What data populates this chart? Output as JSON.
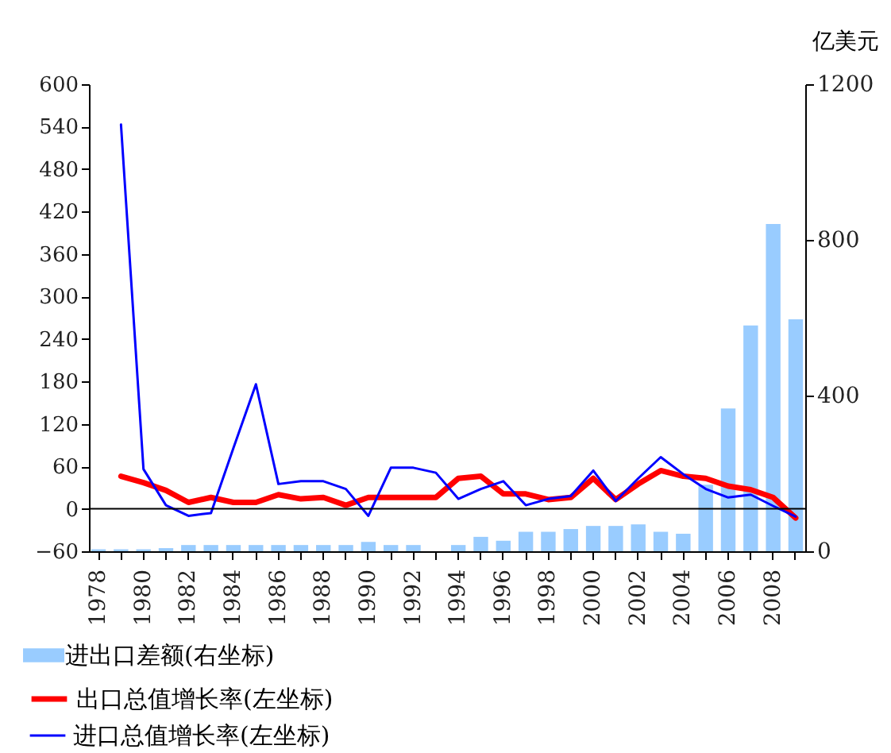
{
  "chart_data": {
    "type": "bar",
    "categories": [
      "1978",
      null,
      "1980",
      null,
      "1982",
      null,
      "1984",
      null,
      "1986",
      null,
      "1988",
      null,
      "1990",
      null,
      "1992",
      null,
      "1994",
      null,
      "1996",
      null,
      "1998",
      null,
      "2000",
      null,
      "2002",
      null,
      "2004",
      null,
      "2006",
      null,
      "2008",
      null
    ],
    "series": [
      {
        "name": "进出口差额(右坐标)",
        "axis": "y2",
        "color": "#99ccff",
        "values": [
          5,
          5,
          5,
          8,
          16,
          16,
          16,
          16,
          16,
          16,
          16,
          16,
          24,
          16,
          16,
          null,
          16,
          37,
          27,
          50,
          50,
          57,
          65,
          65,
          69,
          50,
          45,
          171,
          367,
          580,
          841,
          596
        ]
      },
      {
        "name": "出口总值增长率(左坐标)",
        "type": "line",
        "color": "#ff0000",
        "values": [
          null,
          46,
          37,
          26,
          9,
          16,
          9,
          9,
          20,
          14,
          16,
          5,
          16,
          16,
          16,
          16,
          43,
          46,
          21,
          21,
          13,
          16,
          43,
          13,
          35,
          54,
          46,
          43,
          32,
          27,
          16,
          -13
        ]
      },
      {
        "name": "进口总值增长率(左坐标)",
        "type": "line",
        "color": "#0000ff",
        "values": [
          null,
          543,
          56,
          5,
          -10,
          -6,
          86,
          176,
          35,
          39,
          39,
          28,
          -10,
          58,
          58,
          51,
          14,
          28,
          39,
          5,
          14,
          18,
          54,
          11,
          43,
          73,
          49,
          28,
          16,
          20,
          4,
          -11
        ]
      }
    ],
    "ylim": [
      -60,
      600
    ],
    "yticks": [
      -60,
      0,
      60,
      120,
      180,
      240,
      300,
      360,
      420,
      480,
      540,
      600
    ],
    "y2lim": [
      0,
      1200
    ],
    "y2ticks": [
      0,
      400,
      800,
      1200
    ],
    "y2label": "亿美元",
    "ref_lines": [
      {
        "axis": "y",
        "value": 0
      }
    ],
    "legend": "bottom"
  }
}
